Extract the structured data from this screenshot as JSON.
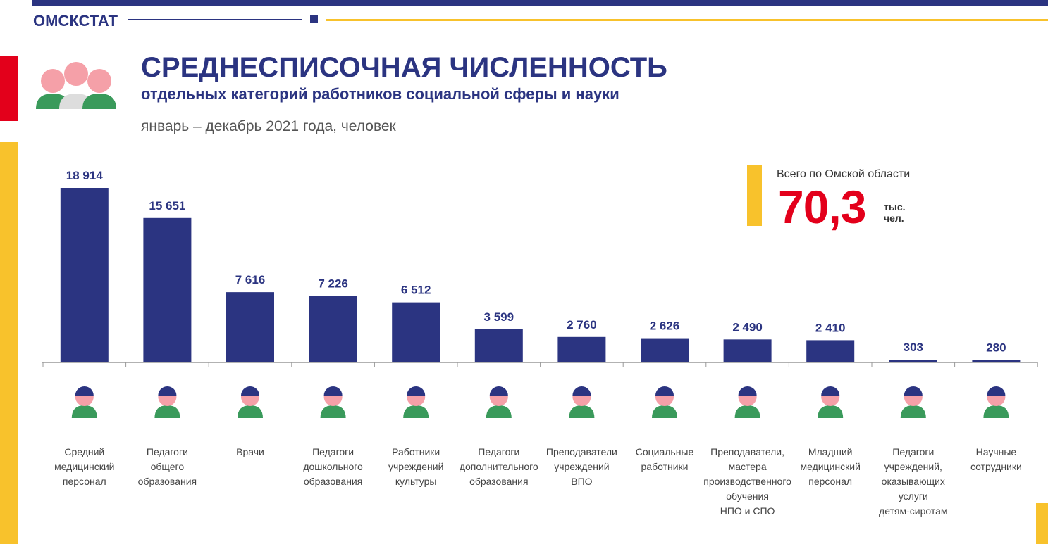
{
  "header": {
    "brand": "ОМСКСТАТ"
  },
  "chart_data": {
    "type": "bar",
    "title": "СРЕДНЕСПИСОЧНАЯ ЧИСЛЕННОСТЬ",
    "subtitle": "отдельных категорий работников социальной сферы и науки",
    "period": "январь – декабрь 2021 года, человек",
    "categories": [
      "Средний\nмедицинский\nперсонал",
      "Педагоги\nобщего\nобразования",
      "Врачи",
      "Педагоги\nдошкольного\nобразования",
      "Работники\nучреждений\nкультуры",
      "Педагоги\nдополнительного\nобразования",
      "Преподаватели\nучреждений\nВПО",
      "Социальные\nработники",
      "Преподаватели,\nмастера\nпроизводственного\nобучения\nНПО и СПО",
      "Младший\nмедицинский\nперсонал",
      "Педагоги\nучреждений,\nоказывающих\nуслуги\nдетям-сиротам",
      "Научные\nсотрудники"
    ],
    "values": [
      18914,
      15651,
      7616,
      7226,
      6512,
      3599,
      2760,
      2626,
      2490,
      2410,
      303,
      280
    ],
    "value_labels": [
      "18 914",
      "15 651",
      "7 616",
      "7 226",
      "6 512",
      "3 599",
      "2 760",
      "2 626",
      "2 490",
      "2 410",
      "303",
      "280"
    ],
    "color": "#2b3481"
  },
  "total": {
    "label": "Всего по Омской области",
    "value": "70,3",
    "unit": "тыс.\nчел."
  }
}
